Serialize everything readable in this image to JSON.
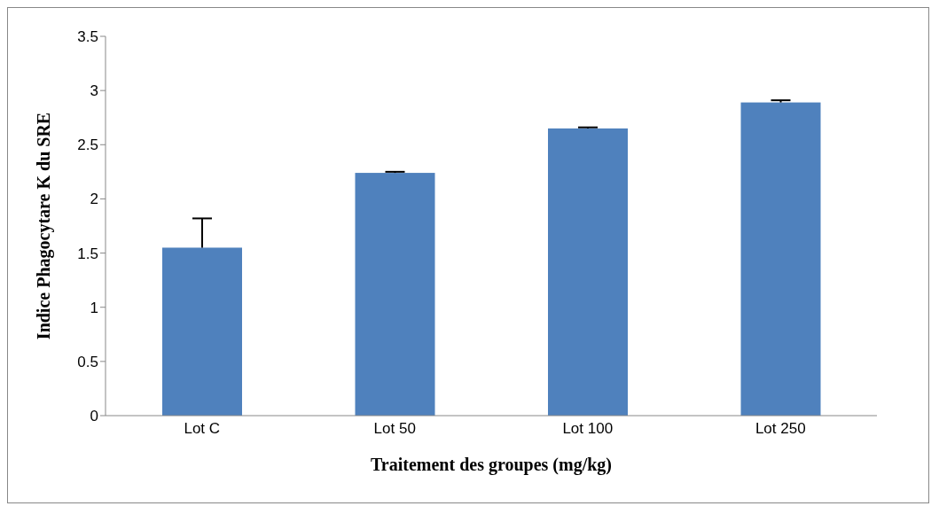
{
  "chart_data": {
    "type": "bar",
    "xlabel": "Traitement des groupes (mg/kg)",
    "ylabel": "Indice Phagocytare K du SRE",
    "categories": [
      "Lot C",
      "Lot 50",
      "Lot 100",
      "Lot 250"
    ],
    "values": [
      1.55,
      2.24,
      2.65,
      2.89
    ],
    "errors": [
      [
        1.55,
        1.82
      ],
      [
        2.24,
        2.25
      ],
      [
        2.65,
        2.66
      ],
      [
        2.89,
        2.91
      ]
    ],
    "color": "#4f81bd",
    "ylim": [
      0,
      3.5
    ],
    "yticks": [
      0,
      0.5,
      1,
      1.5,
      2,
      2.5,
      3,
      3.5
    ],
    "grid": false
  }
}
